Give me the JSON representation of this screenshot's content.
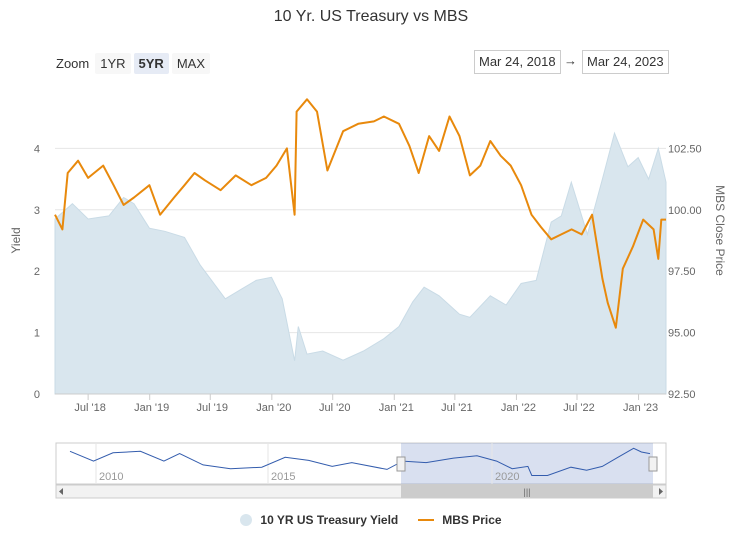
{
  "title": "10 Yr. US Treasury vs MBS",
  "zoom": {
    "label": "Zoom",
    "buttons": [
      "1YR",
      "5YR",
      "MAX"
    ],
    "active": "5YR"
  },
  "range": {
    "from": "Mar 24, 2018",
    "separator": "→",
    "to": "Mar 24, 2023"
  },
  "navigator": {
    "year_labels": [
      "2010",
      "2015",
      "2020"
    ],
    "scroll_grip": "|||"
  },
  "legend": [
    {
      "name": "10 YR US Treasury Yield",
      "color": "#d9e6ee"
    },
    {
      "name": "MBS Price",
      "color": "#e8890c"
    }
  ],
  "chart_data": {
    "type": "area",
    "title": "10 Yr. US Treasury vs MBS",
    "x_tick_labels": [
      "Jul '18",
      "Jan '19",
      "Jul '19",
      "Jan '20",
      "Jul '20",
      "Jan '21",
      "Jul '21",
      "Jan '22",
      "Jul '22",
      "Jan '23"
    ],
    "xlim": [
      "2018-03-24",
      "2023-03-24"
    ],
    "left_axis": {
      "label": "Yield",
      "ticks": [
        "0",
        "1",
        "2",
        "3",
        "4"
      ],
      "range": [
        0,
        5
      ]
    },
    "right_axis": {
      "label": "MBS Close Price",
      "ticks": [
        "92.50",
        "95.00",
        "97.50",
        "100.00",
        "102.50"
      ],
      "range": [
        92.5,
        105
      ]
    },
    "grid": true,
    "legend_position": "bottom",
    "series": [
      {
        "name": "10 YR US Treasury Yield",
        "type": "area",
        "axis": "left",
        "color": "#d9e6ee",
        "points": [
          [
            "2018-03-24",
            2.85
          ],
          [
            "2018-05-15",
            3.1
          ],
          [
            "2018-07-01",
            2.85
          ],
          [
            "2018-09-01",
            2.9
          ],
          [
            "2018-10-15",
            3.2
          ],
          [
            "2018-11-15",
            3.1
          ],
          [
            "2018-12-31",
            2.7
          ],
          [
            "2019-02-15",
            2.65
          ],
          [
            "2019-04-15",
            2.55
          ],
          [
            "2019-06-01",
            2.1
          ],
          [
            "2019-08-15",
            1.55
          ],
          [
            "2019-09-30",
            1.7
          ],
          [
            "2019-11-15",
            1.85
          ],
          [
            "2019-12-31",
            1.9
          ],
          [
            "2020-02-01",
            1.55
          ],
          [
            "2020-03-09",
            0.54
          ],
          [
            "2020-03-20",
            1.1
          ],
          [
            "2020-04-15",
            0.65
          ],
          [
            "2020-06-01",
            0.7
          ],
          [
            "2020-08-01",
            0.55
          ],
          [
            "2020-10-01",
            0.7
          ],
          [
            "2020-12-01",
            0.9
          ],
          [
            "2021-01-15",
            1.1
          ],
          [
            "2021-02-25",
            1.5
          ],
          [
            "2021-03-31",
            1.74
          ],
          [
            "2021-05-15",
            1.6
          ],
          [
            "2021-07-15",
            1.3
          ],
          [
            "2021-08-15",
            1.25
          ],
          [
            "2021-10-15",
            1.6
          ],
          [
            "2021-12-01",
            1.45
          ],
          [
            "2022-01-15",
            1.8
          ],
          [
            "2022-03-01",
            1.85
          ],
          [
            "2022-04-15",
            2.8
          ],
          [
            "2022-05-15",
            2.9
          ],
          [
            "2022-06-14",
            3.45
          ],
          [
            "2022-08-01",
            2.6
          ],
          [
            "2022-09-15",
            3.5
          ],
          [
            "2022-10-21",
            4.25
          ],
          [
            "2022-11-30",
            3.7
          ],
          [
            "2022-12-31",
            3.85
          ],
          [
            "2023-01-31",
            3.5
          ],
          [
            "2023-03-01",
            4.0
          ],
          [
            "2023-03-24",
            3.45
          ]
        ]
      },
      {
        "name": "MBS Price",
        "type": "line",
        "axis": "right",
        "color": "#e8890c",
        "points": [
          [
            "2018-03-24",
            99.8
          ],
          [
            "2018-04-15",
            99.2
          ],
          [
            "2018-05-01",
            101.5
          ],
          [
            "2018-06-01",
            102.0
          ],
          [
            "2018-07-01",
            101.3
          ],
          [
            "2018-08-15",
            101.8
          ],
          [
            "2018-09-15",
            101.0
          ],
          [
            "2018-10-15",
            100.2
          ],
          [
            "2018-11-15",
            100.5
          ],
          [
            "2018-12-31",
            101.0
          ],
          [
            "2019-02-01",
            99.8
          ],
          [
            "2019-03-15",
            100.5
          ],
          [
            "2019-04-15",
            101.0
          ],
          [
            "2019-05-15",
            101.5
          ],
          [
            "2019-06-15",
            101.2
          ],
          [
            "2019-08-01",
            100.8
          ],
          [
            "2019-09-15",
            101.4
          ],
          [
            "2019-11-01",
            101.0
          ],
          [
            "2019-12-15",
            101.3
          ],
          [
            "2020-01-15",
            101.8
          ],
          [
            "2020-02-15",
            102.5
          ],
          [
            "2020-03-09",
            99.8
          ],
          [
            "2020-03-15",
            104.0
          ],
          [
            "2020-04-15",
            104.5
          ],
          [
            "2020-05-15",
            104.0
          ],
          [
            "2020-06-15",
            101.6
          ],
          [
            "2020-08-01",
            103.2
          ],
          [
            "2020-09-15",
            103.5
          ],
          [
            "2020-11-01",
            103.6
          ],
          [
            "2020-12-01",
            103.8
          ],
          [
            "2021-01-15",
            103.5
          ],
          [
            "2021-02-15",
            102.6
          ],
          [
            "2021-03-15",
            101.5
          ],
          [
            "2021-04-15",
            103.0
          ],
          [
            "2021-05-15",
            102.4
          ],
          [
            "2021-06-15",
            103.8
          ],
          [
            "2021-07-15",
            103.0
          ],
          [
            "2021-08-15",
            101.4
          ],
          [
            "2021-09-15",
            101.8
          ],
          [
            "2021-10-15",
            102.8
          ],
          [
            "2021-11-15",
            102.2
          ],
          [
            "2021-12-15",
            101.8
          ],
          [
            "2022-01-15",
            101.0
          ],
          [
            "2022-02-15",
            99.8
          ],
          [
            "2022-03-15",
            99.3
          ],
          [
            "2022-04-15",
            98.8
          ],
          [
            "2022-05-15",
            99.0
          ],
          [
            "2022-06-15",
            99.2
          ],
          [
            "2022-07-15",
            99.0
          ],
          [
            "2022-08-15",
            99.8
          ],
          [
            "2022-09-15",
            97.2
          ],
          [
            "2022-10-01",
            96.2
          ],
          [
            "2022-10-25",
            95.2
          ],
          [
            "2022-11-15",
            97.6
          ],
          [
            "2022-12-15",
            98.5
          ],
          [
            "2023-01-15",
            99.6
          ],
          [
            "2023-02-15",
            99.2
          ],
          [
            "2023-03-01",
            98.0
          ],
          [
            "2023-03-10",
            99.6
          ],
          [
            "2023-03-24",
            99.6
          ]
        ]
      }
    ]
  }
}
